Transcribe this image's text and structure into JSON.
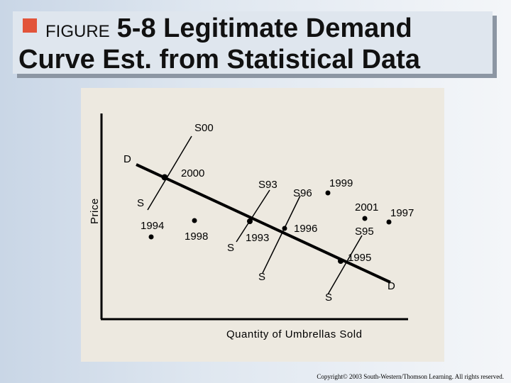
{
  "title": {
    "figure_label": "FIGURE",
    "number": "5-8",
    "line1_rest": "Legitimate Demand",
    "line2": "Curve Est. from Statistical Data"
  },
  "diagram": {
    "y_axis_label": "Price",
    "x_axis_label": "Quantity of Umbrellas Sold",
    "demand_labels": [
      "D",
      "D"
    ],
    "supply_labels": [
      "S00",
      "S",
      "S93",
      "S",
      "S96",
      "S",
      "S95",
      "S"
    ],
    "years": [
      "2000",
      "1999",
      "2001",
      "1997",
      "1994",
      "1998",
      "1993",
      "1996",
      "1995"
    ]
  },
  "copyright": "Copyright© 2003 South-Western/Thomson Learning. All rights reserved."
}
